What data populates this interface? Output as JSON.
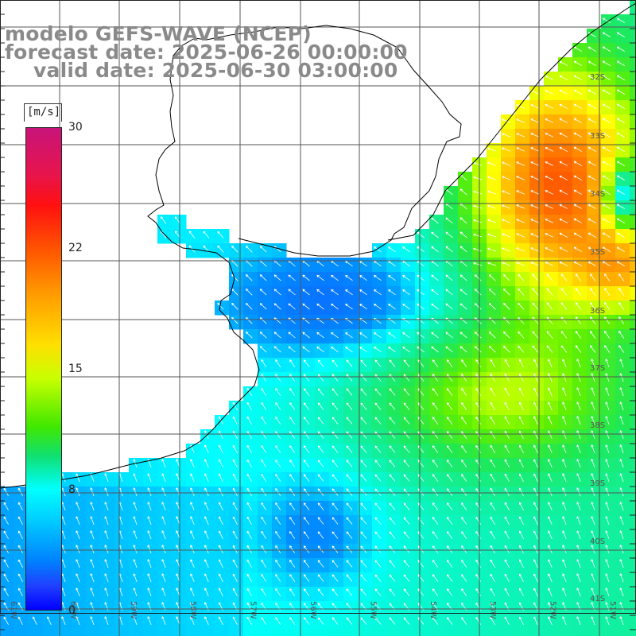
{
  "title": {
    "line1": "modelo GEFS-WAVE (NCEP)",
    "line2": "forecast date: 2025-06-26 00:00:00",
    "line3": "valid date: 2025-06-30 03:00:00"
  },
  "colorbar": {
    "unit": "[m/s]",
    "min": 0,
    "max": 30,
    "ticks": [
      "30",
      "22",
      "15",
      "8",
      "0"
    ],
    "tick_values": [
      30,
      22,
      15,
      8,
      0
    ],
    "colors": [
      "#0000ff",
      "#00c8ff",
      "#00ffff",
      "#10e070",
      "#40e800",
      "#c8ff00",
      "#ffe000",
      "#ff9800",
      "#ff5a00",
      "#ff1010",
      "#e8144a",
      "#c8147a"
    ]
  },
  "map": {
    "lat_labels": [
      "32S",
      "33S",
      "34S",
      "35S",
      "36S",
      "37S",
      "38S",
      "39S",
      "40S",
      "41S"
    ],
    "lat_values": [
      -32,
      -33,
      -34,
      -35,
      -36,
      -37,
      -38,
      -39,
      -40,
      -41
    ],
    "lon_labels": [
      "61W",
      "60W",
      "59W",
      "58W",
      "57W",
      "56W",
      "55W",
      "54W",
      "53W",
      "52W",
      "51W"
    ],
    "lon_values": [
      -61,
      -60,
      -59,
      -58,
      -57,
      -56,
      -55,
      -54,
      -53,
      -52,
      -51
    ],
    "grid_color": "#555555",
    "coast_color": "#000000",
    "arrow_color": "#ffffff",
    "vector_field": "wind speed and direction (arrows pointing toward NW)"
  }
}
